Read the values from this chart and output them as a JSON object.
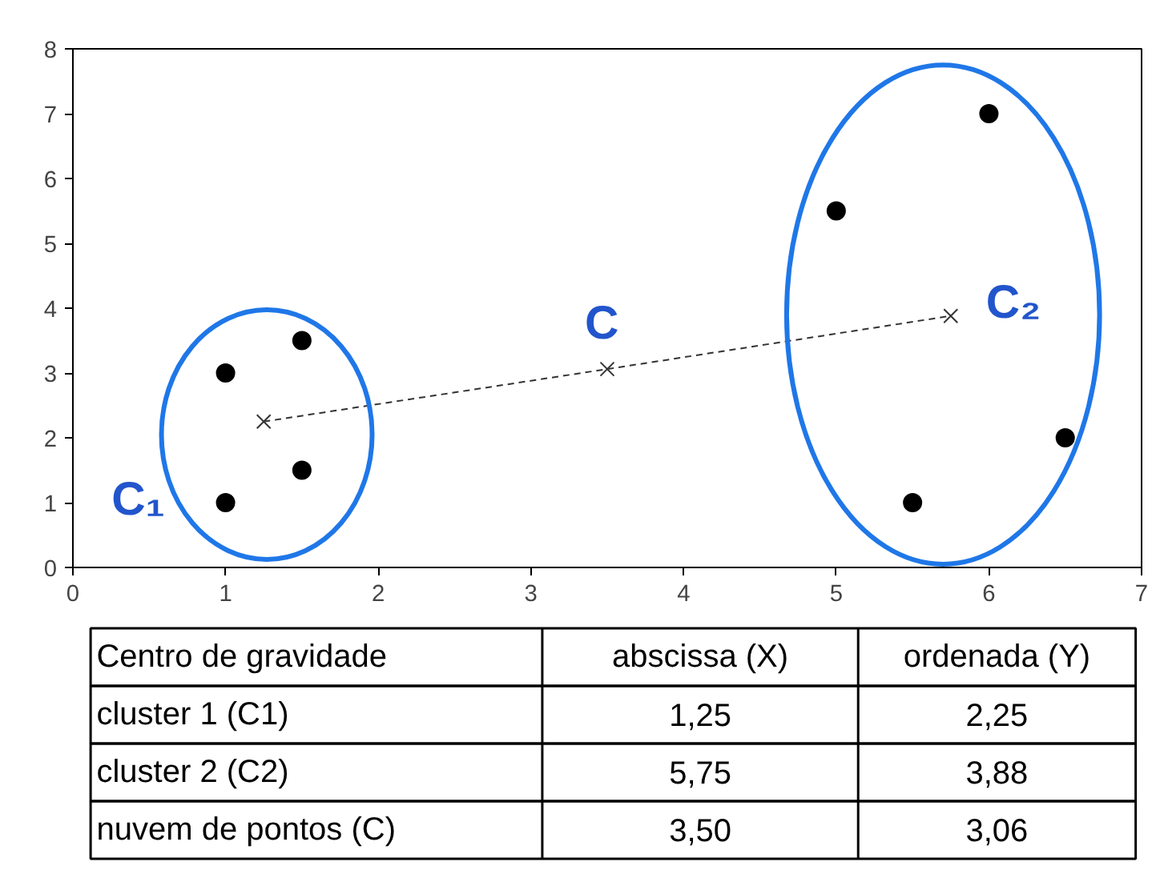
{
  "chart_data": {
    "type": "scatter",
    "xlim": [
      0,
      7
    ],
    "ylim": [
      0,
      8
    ],
    "xticks": [
      0,
      1,
      2,
      3,
      4,
      5,
      6,
      7
    ],
    "yticks": [
      0,
      1,
      2,
      3,
      4,
      5,
      6,
      7,
      8
    ],
    "grid": false,
    "marker": "circle",
    "series": [
      {
        "color": "#000000",
        "x": [
          1,
          1,
          1.5,
          1.5,
          5,
          6,
          5.5,
          6.5
        ],
        "values": [
          3,
          1,
          3.5,
          1.5,
          5.5,
          7,
          1,
          2
        ]
      },
      {
        "type": "line",
        "color": "#333333",
        "marker": "cross",
        "line_style": "dashed",
        "x": [
          1.25,
          3.5,
          5.75
        ],
        "values": [
          2.25,
          3.06,
          3.88
        ]
      }
    ],
    "annotations": [
      {
        "text": "C₁",
        "x": 1.25,
        "y": 2.25
      },
      {
        "text": "C",
        "x": 3.5,
        "y": 3.06
      },
      {
        "text": "C₂",
        "x": 5.75,
        "y": 3.88
      },
      "Centro de gravidade",
      "abscissa (X)",
      "ordenada (Y)",
      "cluster 1 (C1)",
      "1,25",
      "2,25",
      "cluster 2 (C2)",
      "5,75",
      "3,88",
      "nuvem de pontos (C)",
      "3,50",
      "3,06"
    ]
  }
}
